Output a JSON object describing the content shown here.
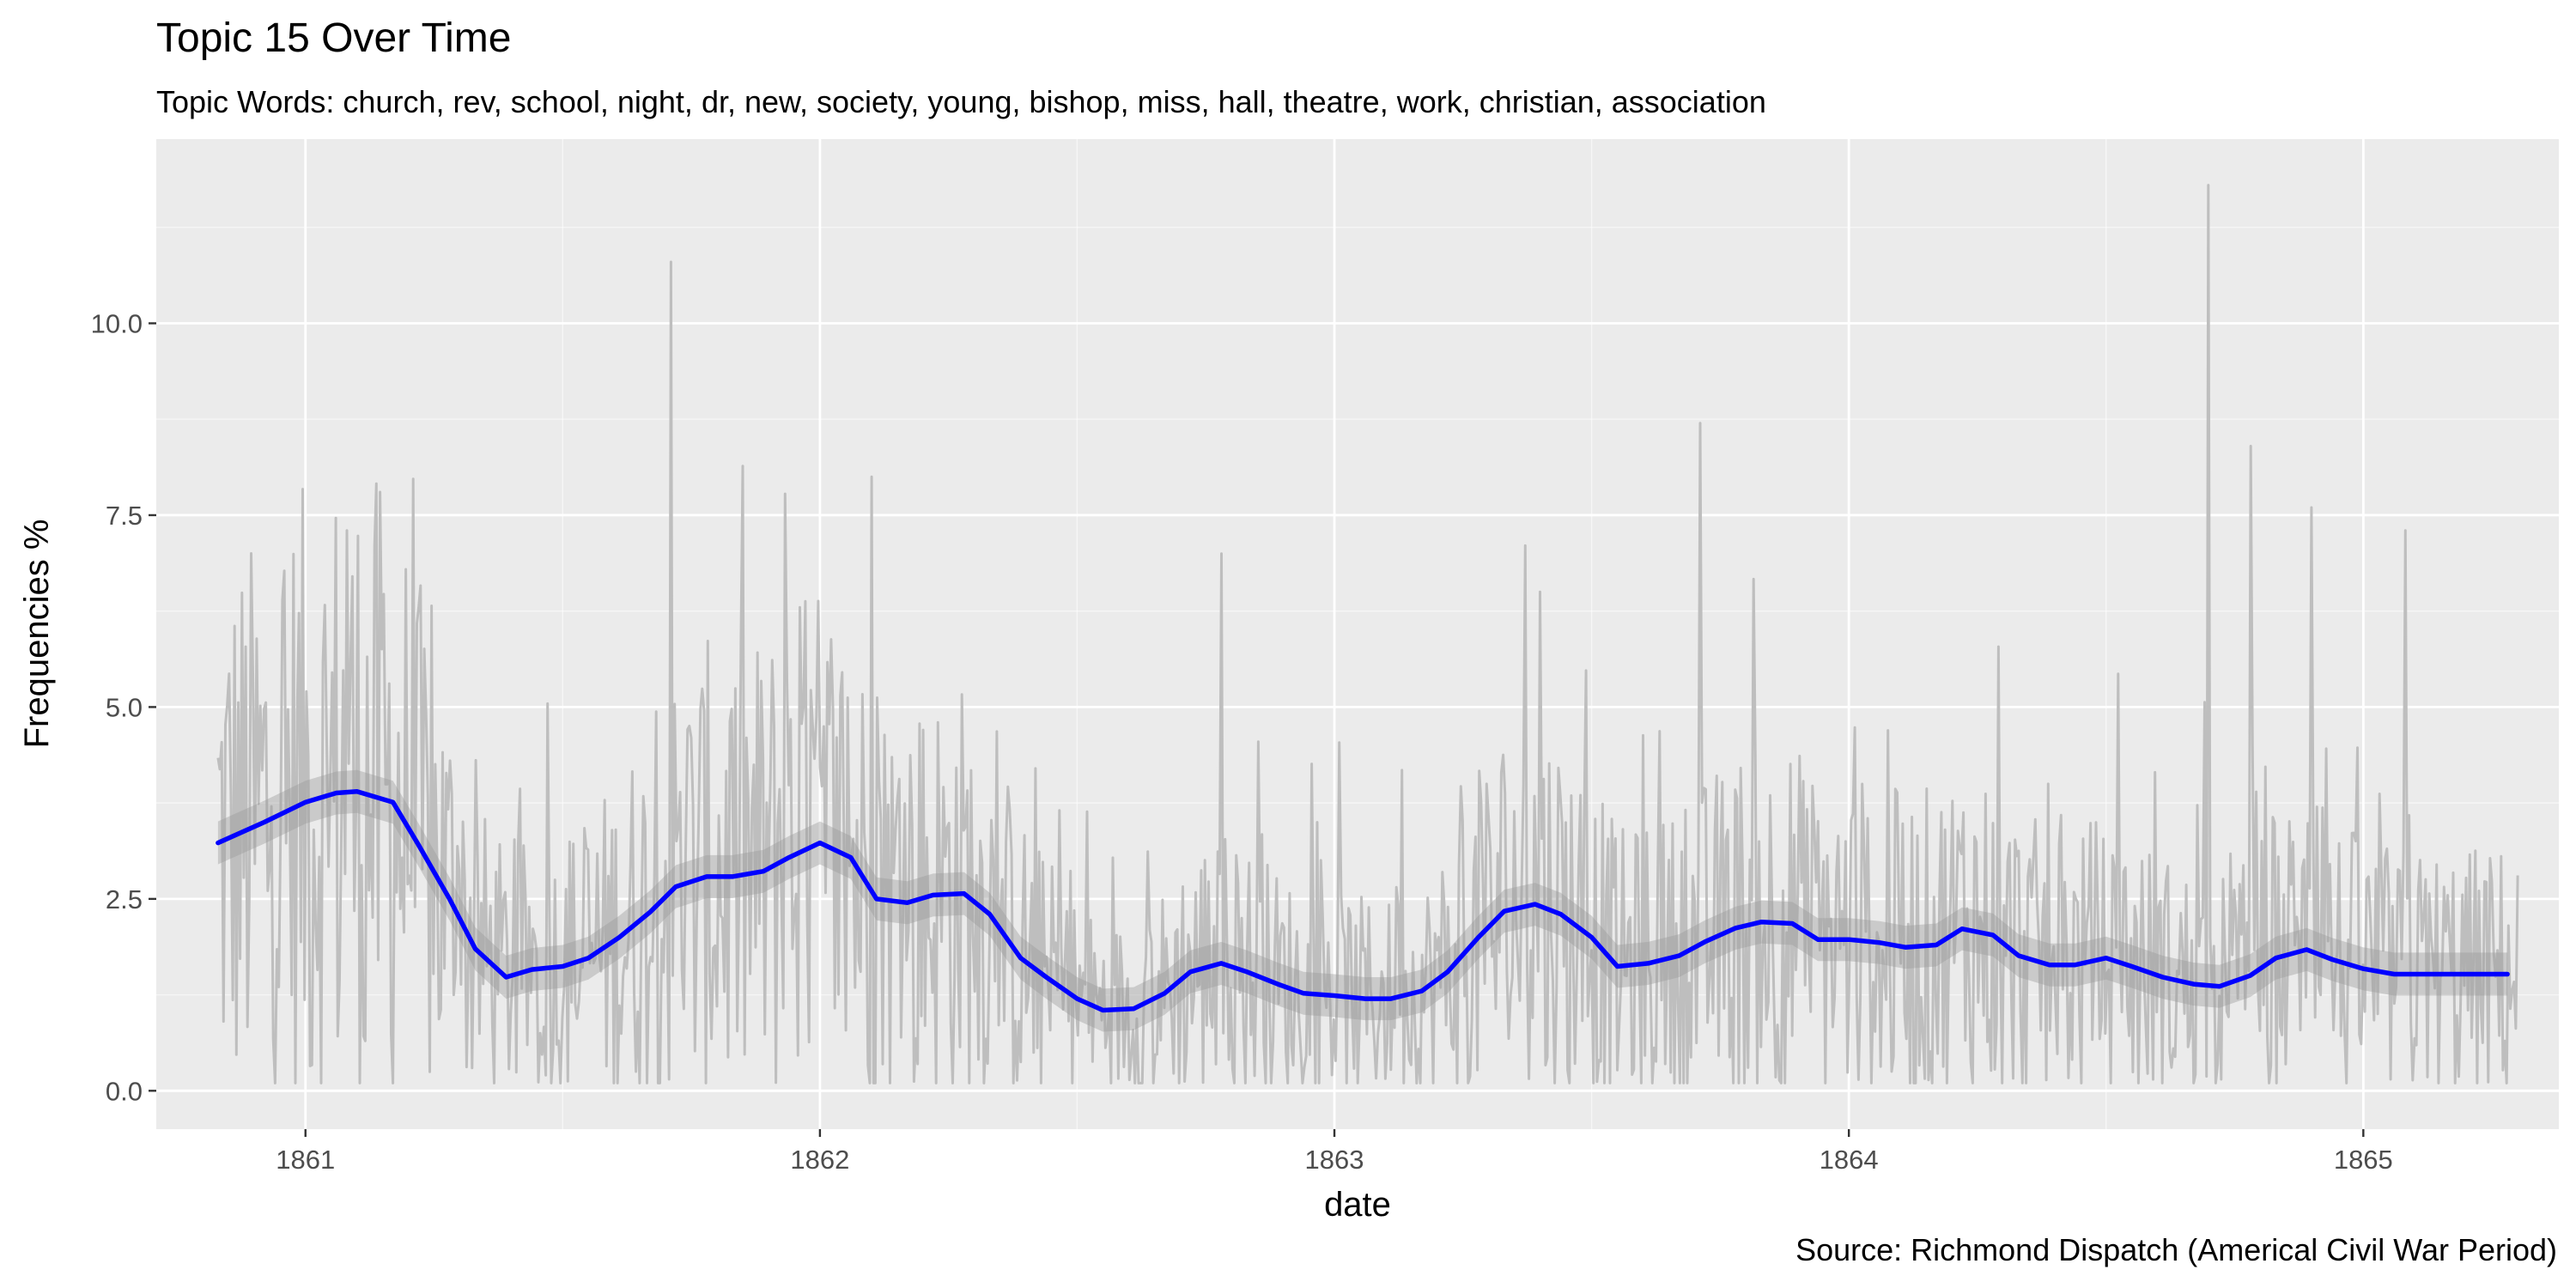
{
  "chart_data": {
    "type": "line",
    "title": "Topic 15 Over Time",
    "subtitle": "Topic Words: church, rev, school, night, dr, new, society, young, bishop, miss, hall, theatre, work, christian, association",
    "xlabel": "date",
    "ylabel": "Frequencies %",
    "caption": "Source: Richmond Dispatch (Americal Civil War Period)",
    "x_ticks": [
      "1861",
      "1862",
      "1863",
      "1864",
      "1865"
    ],
    "y_ticks": [
      "0.0",
      "2.5",
      "5.0",
      "7.5",
      "10.0"
    ],
    "xlim": [
      1860.71,
      1865.38
    ],
    "ylim": [
      -0.5,
      12.4
    ],
    "grid": true,
    "legend": "none",
    "colors": {
      "panel": "#ebebeb",
      "grid": "#ffffff",
      "raw": "#bebebe",
      "band": "#999999",
      "smooth": "#0000ff"
    },
    "series": [
      {
        "type": "smooth",
        "x": [
          1860.83,
          1860.92,
          1861.0,
          1861.06,
          1861.1,
          1861.17,
          1861.22,
          1861.28,
          1861.33,
          1861.39,
          1861.44,
          1861.5,
          1861.55,
          1861.61,
          1861.67,
          1861.72,
          1861.78,
          1861.83,
          1861.89,
          1861.94,
          1862.0,
          1862.06,
          1862.11,
          1862.17,
          1862.22,
          1862.28,
          1862.33,
          1862.39,
          1862.44,
          1862.5,
          1862.55,
          1862.61,
          1862.67,
          1862.72,
          1862.78,
          1862.83,
          1862.89,
          1862.94,
          1863.0,
          1863.06,
          1863.11,
          1863.17,
          1863.22,
          1863.28,
          1863.33,
          1863.39,
          1863.44,
          1863.5,
          1863.55,
          1863.61,
          1863.67,
          1863.72,
          1863.78,
          1863.83,
          1863.89,
          1863.94,
          1864.0,
          1864.06,
          1864.11,
          1864.17,
          1864.22,
          1864.28,
          1864.33,
          1864.39,
          1864.44,
          1864.5,
          1864.55,
          1864.61,
          1864.67,
          1864.72,
          1864.78,
          1864.83,
          1864.89,
          1864.94,
          1865.0,
          1865.06,
          1865.11,
          1865.17,
          1865.22,
          1865.28
        ],
        "y": [
          3.23,
          3.5,
          3.76,
          3.88,
          3.9,
          3.76,
          3.2,
          2.5,
          1.85,
          1.48,
          1.58,
          1.62,
          1.73,
          2.0,
          2.33,
          2.66,
          2.79,
          2.79,
          2.86,
          3.04,
          3.23,
          3.04,
          2.5,
          2.45,
          2.55,
          2.57,
          2.3,
          1.73,
          1.48,
          1.2,
          1.05,
          1.07,
          1.27,
          1.55,
          1.66,
          1.55,
          1.39,
          1.27,
          1.24,
          1.2,
          1.2,
          1.3,
          1.55,
          2.0,
          2.34,
          2.43,
          2.3,
          2.0,
          1.62,
          1.66,
          1.76,
          1.94,
          2.12,
          2.2,
          2.18,
          1.97,
          1.97,
          1.93,
          1.87,
          1.9,
          2.11,
          2.03,
          1.76,
          1.64,
          1.64,
          1.73,
          1.62,
          1.48,
          1.39,
          1.36,
          1.5,
          1.73,
          1.84,
          1.71,
          1.59,
          1.52,
          1.52,
          1.52,
          1.52,
          1.52
        ]
      },
      {
        "type": "raw-daily",
        "x_range": [
          1860.83,
          1865.3
        ],
        "y_range": [
          0.1,
          11.8
        ],
        "spikes": [
          {
            "x": 1861.08,
            "y": 7.3
          },
          {
            "x": 1861.22,
            "y": 6.3
          },
          {
            "x": 1861.71,
            "y": 10.8
          },
          {
            "x": 1861.96,
            "y": 6.3
          },
          {
            "x": 1862.1,
            "y": 8.0
          },
          {
            "x": 1862.78,
            "y": 7.0
          },
          {
            "x": 1863.4,
            "y": 6.5
          },
          {
            "x": 1863.71,
            "y": 8.7
          },
          {
            "x": 1864.7,
            "y": 11.8
          },
          {
            "x": 1864.78,
            "y": 8.4
          },
          {
            "x": 1864.9,
            "y": 7.6
          },
          {
            "x": 1865.08,
            "y": 7.3
          }
        ]
      }
    ]
  }
}
